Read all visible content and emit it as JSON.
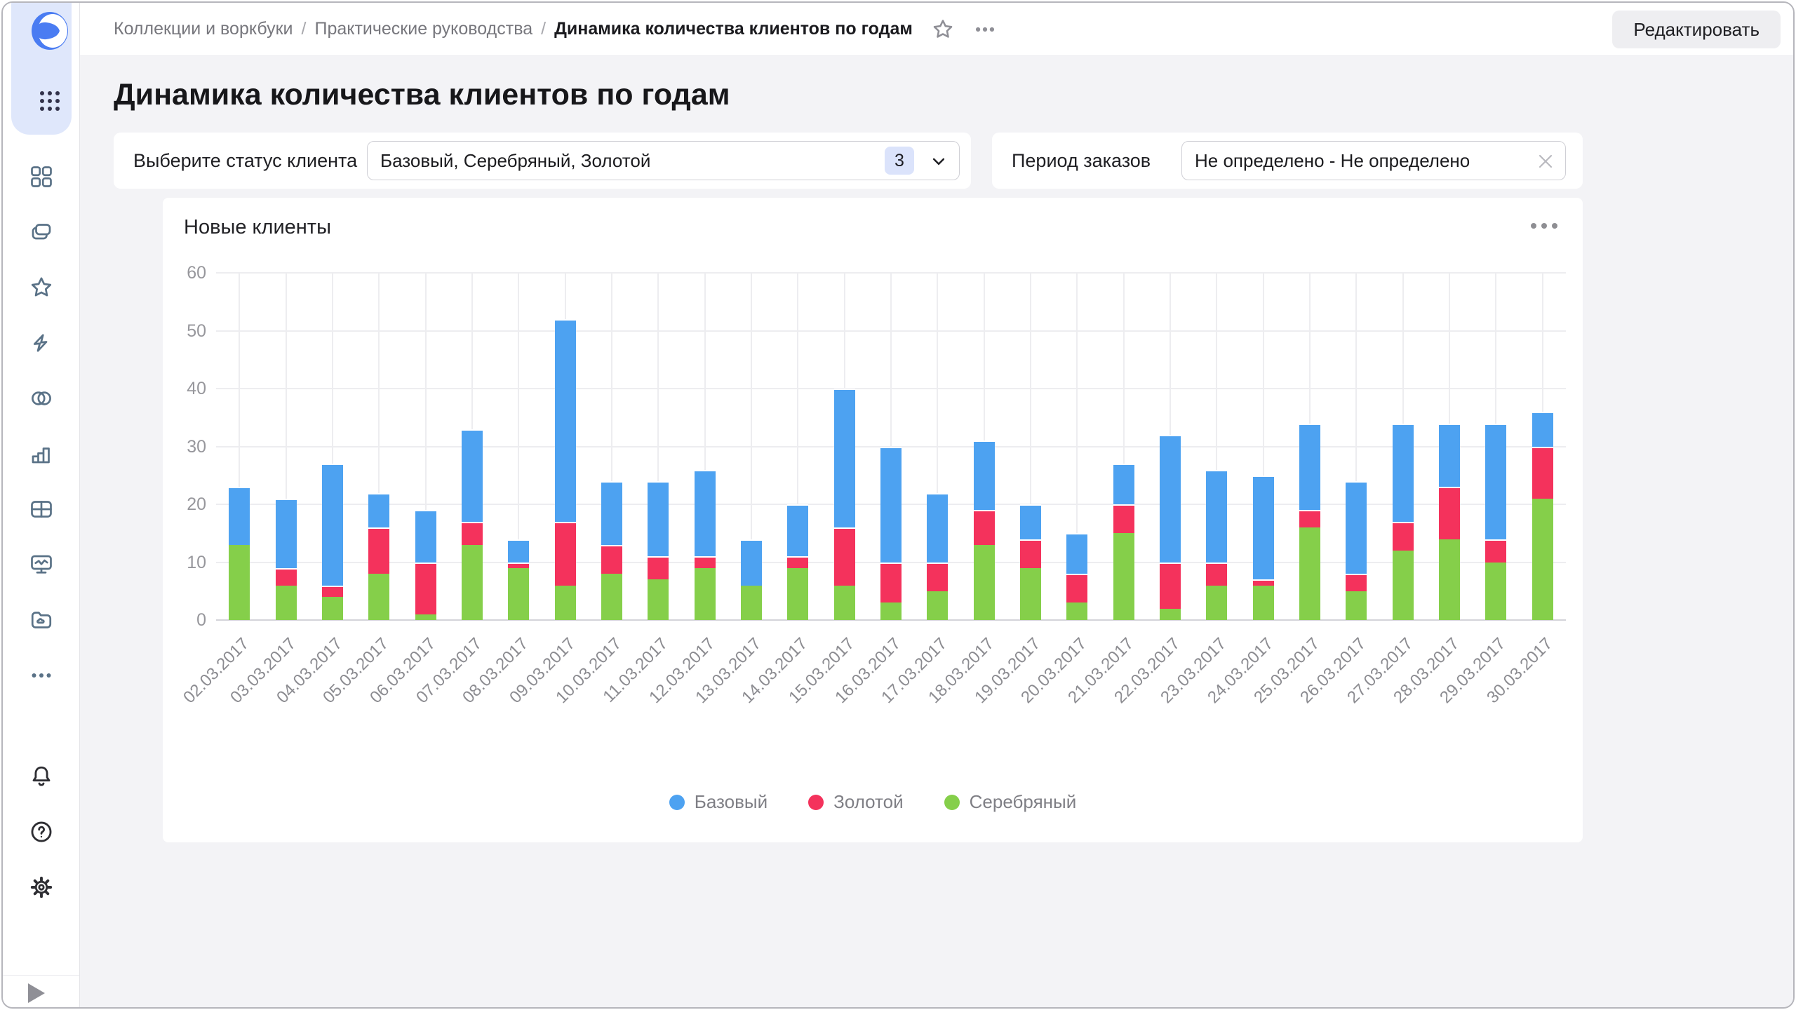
{
  "header": {
    "breadcrumb": [
      "Коллекции и воркбуки",
      "Практические руководства",
      "Динамика количества клиентов по годам"
    ],
    "separator": "/",
    "edit_button": "Редактировать"
  },
  "sidebar": {
    "logo_icon": "datalens-logo",
    "apps_icon": "apps-grid-dots-icon",
    "nav_icons": [
      "dashboard-grid-icon",
      "collections-icon",
      "star-icon",
      "lightning-icon",
      "linked-circles-icon",
      "bar-chart-icon",
      "table-icon",
      "monitor-chart-icon",
      "folder-icon",
      "ellipsis-icon"
    ],
    "bottom_icons": [
      "bell-icon",
      "help-icon",
      "gear-icon",
      "expand-icon"
    ]
  },
  "page": {
    "title": "Динамика количества клиентов по годам"
  },
  "filters": {
    "status": {
      "label": "Выберите статус клиента",
      "value": "Базовый, Серебряный, Золотой",
      "count": "3"
    },
    "period": {
      "label": "Период заказов",
      "value": "Не определено - Не определено"
    }
  },
  "chart_card": {
    "title": "Новые клиенты"
  },
  "chart_data": {
    "type": "bar",
    "stacked": true,
    "title": "Новые клиенты",
    "categories": [
      "02.03.2017",
      "03.03.2017",
      "04.03.2017",
      "05.03.2017",
      "06.03.2017",
      "07.03.2017",
      "08.03.2017",
      "09.03.2017",
      "10.03.2017",
      "11.03.2017",
      "12.03.2017",
      "13.03.2017",
      "14.03.2017",
      "15.03.2017",
      "16.03.2017",
      "17.03.2017",
      "18.03.2017",
      "19.03.2017",
      "20.03.2017",
      "21.03.2017",
      "22.03.2017",
      "23.03.2017",
      "24.03.2017",
      "25.03.2017",
      "26.03.2017",
      "27.03.2017",
      "28.03.2017",
      "29.03.2017",
      "30.03.2017"
    ],
    "series": [
      {
        "name": "Базовый",
        "color": "#4da2f1",
        "values": [
          10,
          12,
          21,
          6,
          9,
          16,
          4,
          35,
          11,
          13,
          15,
          8,
          9,
          24,
          20,
          12,
          12,
          6,
          7,
          7,
          22,
          16,
          18,
          15,
          16,
          17,
          11,
          20,
          6
        ]
      },
      {
        "name": "Золотой",
        "color": "#f4325c",
        "values": [
          0,
          3,
          2,
          8,
          9,
          4,
          1,
          11,
          5,
          4,
          2,
          0,
          2,
          10,
          7,
          5,
          6,
          5,
          5,
          5,
          8,
          4,
          1,
          3,
          3,
          5,
          9,
          4,
          9
        ]
      },
      {
        "name": "Серебряный",
        "color": "#85cf4a",
        "values": [
          13,
          6,
          4,
          8,
          1,
          13,
          9,
          6,
          8,
          7,
          9,
          6,
          9,
          6,
          3,
          5,
          13,
          9,
          3,
          15,
          2,
          6,
          6,
          16,
          5,
          12,
          14,
          10,
          21
        ]
      }
    ],
    "stack_order_bottom_to_top": [
      "Серебряный",
      "Золотой",
      "Базовый"
    ],
    "xlabel": "",
    "ylabel": "",
    "ylim": [
      0,
      60
    ],
    "yticks": [
      0,
      10,
      20,
      30,
      40,
      50,
      60
    ],
    "grid": true,
    "legend_position": "bottom"
  }
}
